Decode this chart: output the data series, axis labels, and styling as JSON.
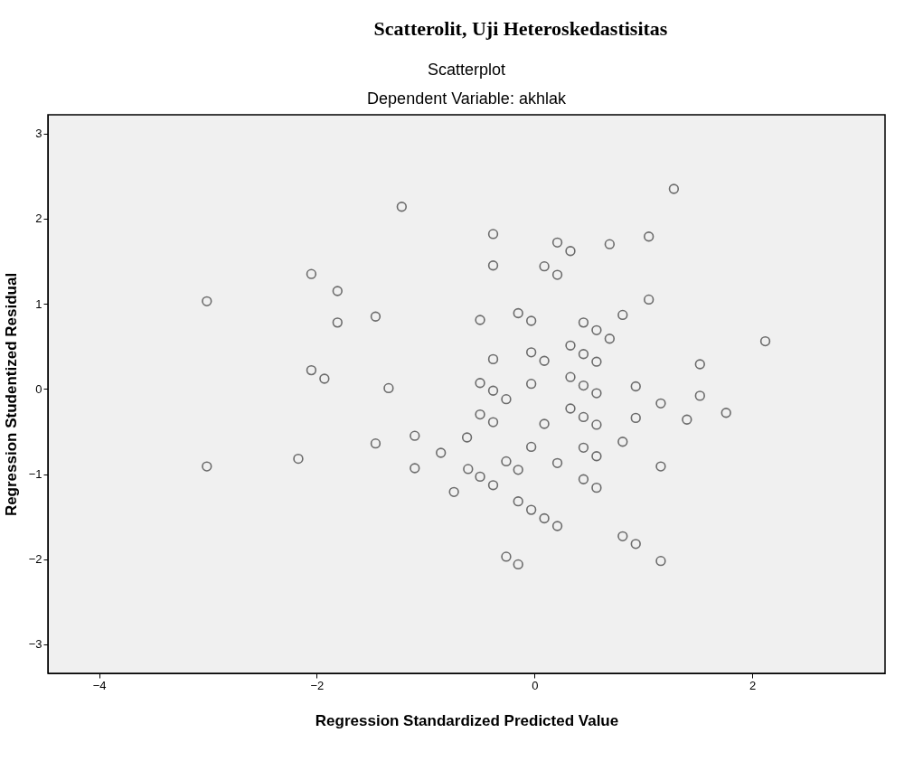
{
  "chart_data": {
    "type": "scatter",
    "title": "Scatterplot",
    "subtitle": "Dependent Variable: akhlak",
    "annotations": [
      "Scatterolit, Uji Heteroskedastisitas"
    ],
    "xlabel": "Regression Standardized Predicted Value",
    "ylabel": "Regression Studentized Residual",
    "x": [
      -1.22,
      -2.05,
      -1.81,
      -3.01,
      -1.81,
      -1.46,
      -2.05,
      -1.93,
      -1.34,
      1.28,
      -0.38,
      0.21,
      0.33,
      0.69,
      1.05,
      -0.38,
      0.09,
      0.21,
      1.05,
      -0.5,
      -0.15,
      -0.03,
      0.45,
      0.81,
      0.57,
      0.69,
      2.12,
      0.33,
      -0.03,
      0.45,
      -0.38,
      0.09,
      0.57,
      1.52,
      -0.5,
      0.33,
      -0.03,
      0.93,
      -0.38,
      -0.26,
      0.45,
      0.57,
      1.52,
      1.16,
      1.76,
      -0.5,
      -0.38,
      0.09,
      0.33,
      0.45,
      0.57,
      0.93,
      1.4,
      -0.62,
      -0.03,
      0.45,
      0.57,
      0.81,
      1.16,
      -0.61,
      -0.5,
      -0.38,
      -0.26,
      -0.15,
      0.21,
      0.45,
      0.57,
      -0.15,
      -0.03,
      0.09,
      0.21,
      0.81,
      0.93,
      1.16,
      -0.26,
      -0.15,
      -1.46,
      -1.1,
      -0.86,
      -1.1,
      -0.74,
      -2.17,
      -3.01
    ],
    "series": [
      {
        "color": "#333333",
        "values": [
          2.14,
          1.35,
          1.15,
          1.03,
          0.78,
          0.85,
          0.22,
          0.12,
          0.01,
          2.35,
          1.82,
          1.72,
          1.62,
          1.7,
          1.79,
          1.45,
          1.44,
          1.34,
          1.05,
          0.81,
          0.89,
          0.8,
          0.78,
          0.87,
          0.69,
          0.59,
          0.56,
          0.51,
          0.43,
          0.41,
          0.35,
          0.33,
          0.32,
          0.29,
          0.07,
          0.14,
          0.06,
          0.03,
          -0.02,
          -0.12,
          0.04,
          -0.05,
          -0.08,
          -0.17,
          -0.28,
          -0.3,
          -0.39,
          -0.41,
          -0.23,
          -0.33,
          -0.42,
          -0.34,
          -0.36,
          -0.57,
          -0.68,
          -0.69,
          -0.79,
          -0.62,
          -0.91,
          -0.94,
          -1.03,
          -1.13,
          -0.85,
          -0.95,
          -0.87,
          -1.06,
          -1.16,
          -1.32,
          -1.42,
          -1.52,
          -1.61,
          -1.73,
          -1.82,
          -2.02,
          -1.97,
          -2.06,
          -0.64,
          -0.55,
          -0.75,
          -0.93,
          -1.21,
          -0.82,
          -0.91
        ]
      }
    ],
    "xlim": [
      -4.47,
      3.22
    ],
    "ylim": [
      -3.34,
      3.22
    ],
    "xticks": [
      -4,
      -2,
      0,
      2
    ],
    "yticks": [
      -3,
      -2,
      -1,
      0,
      1,
      2,
      3
    ],
    "marker": "circle",
    "grid": false,
    "legend": false
  }
}
